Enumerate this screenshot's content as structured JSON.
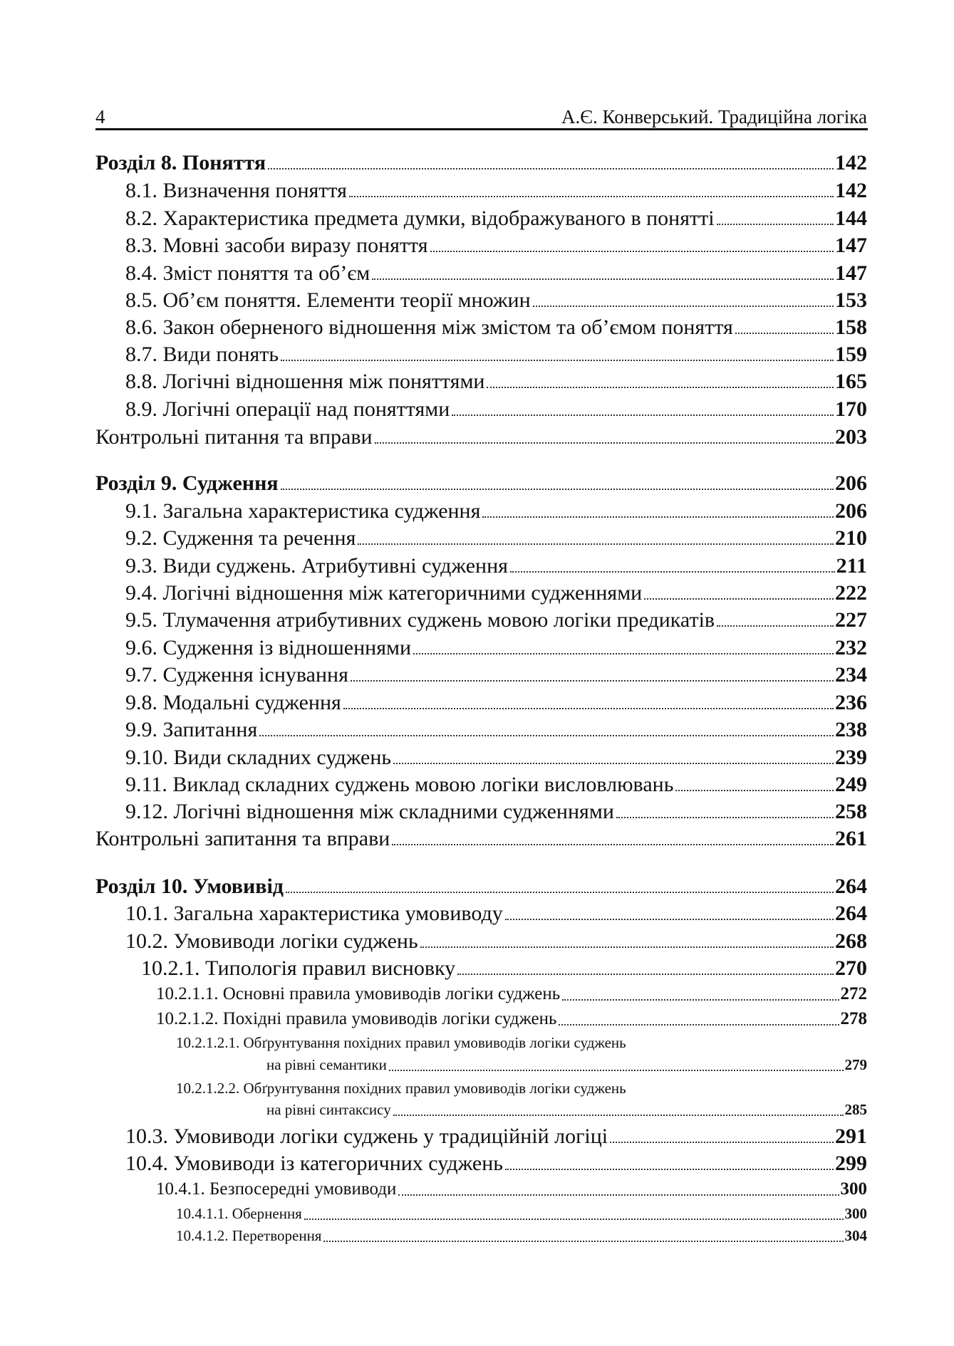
{
  "header": {
    "page_number": "4",
    "running_title": "А.Є. Конверський. Традиційна логіка"
  },
  "toc": [
    {
      "level": 0,
      "title": "Розділ 8. Поняття",
      "page": "142"
    },
    {
      "level": 1,
      "title": "8.1. Визначення поняття",
      "page": "142"
    },
    {
      "level": 1,
      "title": "8.2. Характеристика предмета думки, відображуваного в понятті",
      "page": "144"
    },
    {
      "level": 1,
      "title": "8.3. Мовні засоби виразу поняття",
      "page": "147"
    },
    {
      "level": 1,
      "title": "8.4. Зміст поняття та об’єм",
      "page": "147"
    },
    {
      "level": 1,
      "title": "8.5. Об’єм поняття. Елементи теорії множин",
      "page": "153"
    },
    {
      "level": 1,
      "title": "8.6. Закон оберненого відношення між змістом та об’ємом поняття",
      "page": "158"
    },
    {
      "level": 1,
      "title": "8.7. Види понять",
      "page": "159"
    },
    {
      "level": 1,
      "title": "8.8. Логічні відношення між поняттями",
      "page": "165"
    },
    {
      "level": 1,
      "title": "8.9. Логічні операції над поняттями",
      "page": "170"
    },
    {
      "level": -1,
      "title": "Контрольні питання та вправи",
      "page": "203"
    },
    {
      "level": 0,
      "title": "Розділ 9. Судження",
      "page": "206"
    },
    {
      "level": 1,
      "title": "9.1. Загальна характеристика судження",
      "page": "206"
    },
    {
      "level": 1,
      "title": "9.2. Судження та речення",
      "page": "210"
    },
    {
      "level": 1,
      "title": "9.3. Види суджень. Атрибутивні судження",
      "page": "211"
    },
    {
      "level": 1,
      "title": "9.4. Логічні відношення між категоричними судженнями",
      "page": "222"
    },
    {
      "level": 1,
      "title": "9.5. Тлумачення атрибутивних суджень мовою логіки предикатів",
      "page": "227"
    },
    {
      "level": 1,
      "title": "9.6. Судження із відношеннями",
      "page": "232"
    },
    {
      "level": 1,
      "title": "9.7. Судження існування",
      "page": "234"
    },
    {
      "level": 1,
      "title": "9.8. Модальні судження",
      "page": "236"
    },
    {
      "level": 1,
      "title": "9.9. Запитання",
      "page": "238"
    },
    {
      "level": 1,
      "title": "9.10. Види складних суджень",
      "page": "239"
    },
    {
      "level": 1,
      "title": "9.11. Виклад складних суджень мовою логіки висловлювань",
      "page": "249"
    },
    {
      "level": 1,
      "title": "9.12. Логічні відношення між складними судженнями",
      "page": "258"
    },
    {
      "level": -1,
      "title": "Контрольні запитання та вправи",
      "page": "261"
    },
    {
      "level": 0,
      "title": "Розділ 10. Умовивід",
      "page": "264"
    },
    {
      "level": 1,
      "title": "10.1. Загальна характеристика умовиводу",
      "page": "264"
    },
    {
      "level": 1,
      "title": "10.2. Умовиводи логіки суджень",
      "page": "268"
    },
    {
      "level": 2,
      "title": "10.2.1. Типологія правил висновку",
      "page": "270"
    },
    {
      "level": 3,
      "title": "10.2.1.1. Основні правила умовиводів логіки суджень",
      "page": "272"
    },
    {
      "level": 3,
      "title": "10.2.1.2. Похідні правила умовиводів логіки суджень",
      "page": "278"
    },
    {
      "level": 4,
      "title": "10.2.1.2.1. Обґрунтування похідних правил умовиводів логіки суджень",
      "title_cont": "на рівні семантики",
      "page": "279"
    },
    {
      "level": 4,
      "title": "10.2.1.2.2. Обґрунтування похідних правил умовиводів логіки суджень",
      "title_cont": "на рівні синтаксису",
      "page": "285"
    },
    {
      "level": 1,
      "title": "10.3. Умовиводи логіки суджень у традиційній логіці",
      "page": "291"
    },
    {
      "level": 1,
      "title": "10.4. Умовиводи із категоричних суджень",
      "page": "299"
    },
    {
      "level": 3,
      "title": "10.4.1. Безпосередні умовиводи",
      "page": "300"
    },
    {
      "level": 4,
      "title": "10.4.1.1. Обернення",
      "page": "300"
    },
    {
      "level": 4,
      "title": "10.4.1.2. Перетворення",
      "page": "304"
    }
  ]
}
